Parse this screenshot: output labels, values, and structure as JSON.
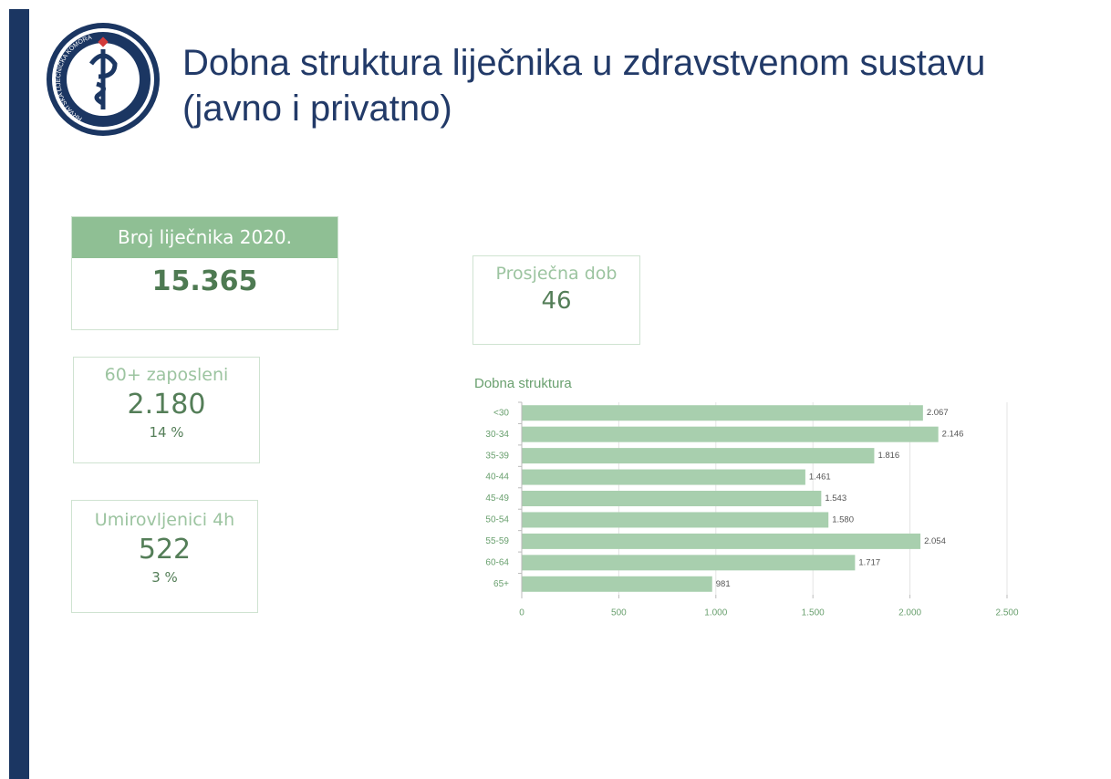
{
  "header": {
    "title": "Dobna struktura liječnika u zdravstvenom sustavu (javno i privatno)",
    "logo_text": "HRVATSKA LIJEČNIČKA KOMORA"
  },
  "kpis": [
    {
      "label": "Broj liječnika 2020.",
      "value": "15.365"
    },
    {
      "label": "Prosječna dob",
      "value": "46"
    },
    {
      "label": "60+ zaposleni",
      "value": "2.180",
      "percent": "14 %"
    },
    {
      "label": "Umirovljenici 4h",
      "value": "522",
      "percent": "3 %"
    }
  ],
  "chart_data": {
    "type": "bar",
    "orientation": "horizontal",
    "title": "Dobna struktura",
    "categories": [
      "<30",
      "30-34",
      "35-39",
      "40-44",
      "45-49",
      "50-54",
      "55-59",
      "60-64",
      "65+"
    ],
    "values": [
      2067,
      2146,
      1816,
      1461,
      1543,
      1580,
      2054,
      1717,
      981
    ],
    "value_labels": [
      "2.067",
      "2.146",
      "1.816",
      "1.461",
      "1.543",
      "1.580",
      "2.054",
      "1.717",
      "981"
    ],
    "color": "#a8cfae",
    "xlim": [
      0,
      2500
    ],
    "xticks": [
      0,
      500,
      {
        "value": 1000,
        "label": "1.000"
      },
      {
        "value": 1500,
        "label": "1.500"
      },
      {
        "value": 2000,
        "label": "2.000"
      },
      {
        "value": 2500,
        "label": "2.500"
      }
    ],
    "grid": true
  }
}
